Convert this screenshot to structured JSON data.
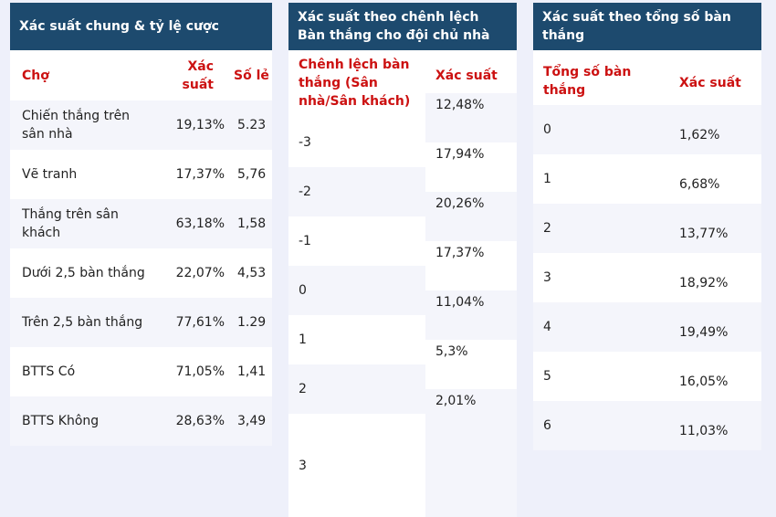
{
  "general": {
    "title": "Xác suất chung & tỷ lệ cược",
    "columns": [
      "Chợ",
      "Xác suất",
      "Số lẻ"
    ],
    "rows": [
      [
        "Chiến thắng trên sân nhà",
        "19,13%",
        "5.23"
      ],
      [
        "Vẽ tranh",
        "17,37%",
        "5,76"
      ],
      [
        "Thắng trên sân khách",
        "63,18%",
        "1,58"
      ],
      [
        "Dưới 2,5 bàn thắng",
        "22,07%",
        "4,53"
      ],
      [
        "Trên 2,5 bàn thắng",
        "77,61%",
        "1.29"
      ],
      [
        "BTTS Có",
        "71,05%",
        "1,41"
      ],
      [
        "BTTS Không",
        "28,63%",
        "3,49"
      ]
    ]
  },
  "difference": {
    "title": "Xác suất theo chênh lệch Bàn thắng cho đội chủ nhà",
    "columns": [
      "Chênh lệch bàn thắng (Sân nhà/Sân khách)",
      "Xác suất"
    ],
    "diffs": [
      "-3",
      "-2",
      "-1",
      "0",
      "1",
      "2",
      "3"
    ],
    "probs": [
      "12,48%",
      "17,94%",
      "20,26%",
      "17,37%",
      "11,04%",
      "5,3%",
      "2,01%"
    ]
  },
  "total": {
    "title": "Xác suất theo tổng số bàn thắng",
    "columns": [
      "Tổng số bàn thắng",
      "Xác suất"
    ],
    "rows": [
      [
        "0",
        "1,62%"
      ],
      [
        "1",
        "6,68%"
      ],
      [
        "2",
        "13,77%"
      ],
      [
        "3",
        "18,92%"
      ],
      [
        "4",
        "19,49%"
      ],
      [
        "5",
        "16,05%"
      ],
      [
        "6",
        "11,03%"
      ]
    ]
  }
}
